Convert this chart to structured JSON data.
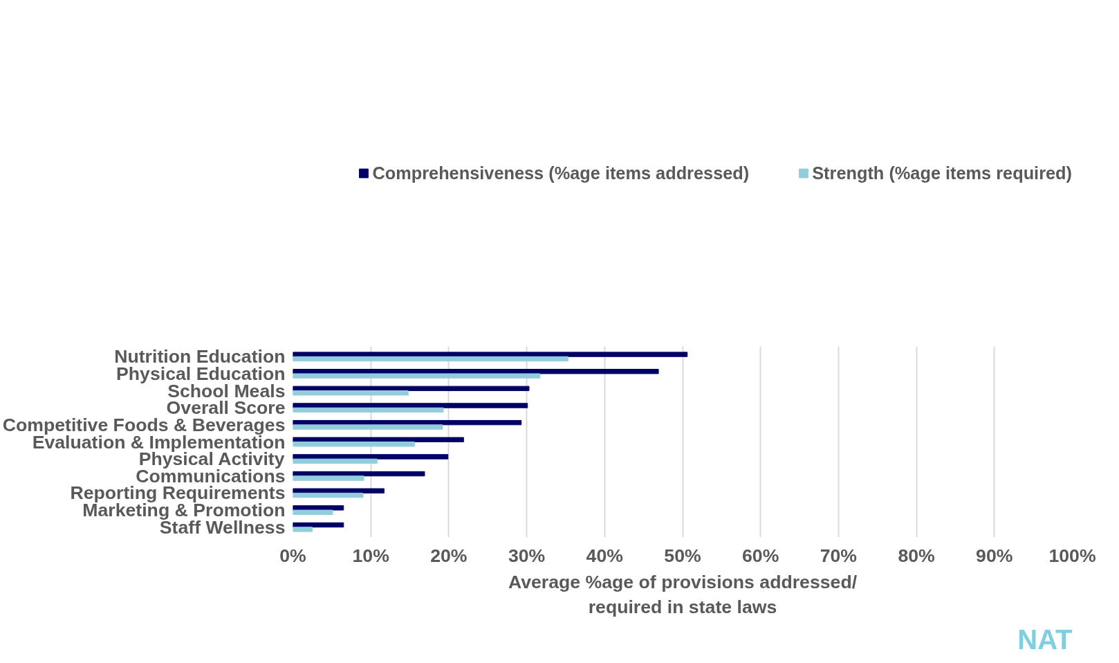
{
  "chart_data": {
    "type": "bar",
    "orientation": "horizontal",
    "categories": [
      "Nutrition Education",
      "Physical Education",
      "School Meals",
      "Overall Score",
      "Competitive Foods & Beverages",
      "Evaluation & Implementation",
      "Physical Activity",
      "Communications",
      "Reporting Requirements",
      "Marketing & Promotion",
      "Staff Wellness"
    ],
    "series": [
      {
        "name": "Comprehensiveness (%age items addressed)",
        "color": "#000066",
        "values": [
          50.6,
          46.9,
          30.3,
          30.1,
          29.3,
          21.9,
          19.9,
          16.9,
          11.7,
          6.5,
          6.5
        ]
      },
      {
        "name": "Strength (%age items required)",
        "color": "#92cddc",
        "values": [
          35.3,
          31.7,
          14.8,
          19.3,
          19.2,
          15.6,
          10.8,
          9.1,
          9.0,
          5.1,
          2.5
        ]
      }
    ],
    "xlabel": "Average %age of provisions addressed/\nrequired in state laws",
    "xlim": [
      0,
      100
    ],
    "xticks": [
      {
        "value": 0,
        "label": "0%"
      },
      {
        "value": 10,
        "label": "10%"
      },
      {
        "value": 20,
        "label": "20%"
      },
      {
        "value": 30,
        "label": "30%"
      },
      {
        "value": 40,
        "label": "40%"
      },
      {
        "value": 50,
        "label": "50%"
      },
      {
        "value": 60,
        "label": "60%"
      },
      {
        "value": 70,
        "label": "70%"
      },
      {
        "value": 80,
        "label": "80%"
      },
      {
        "value": 90,
        "label": "90%"
      },
      {
        "value": 100,
        "label": "100%"
      }
    ],
    "grid": "x",
    "legend": "top",
    "annotations": [
      "NAT"
    ]
  }
}
